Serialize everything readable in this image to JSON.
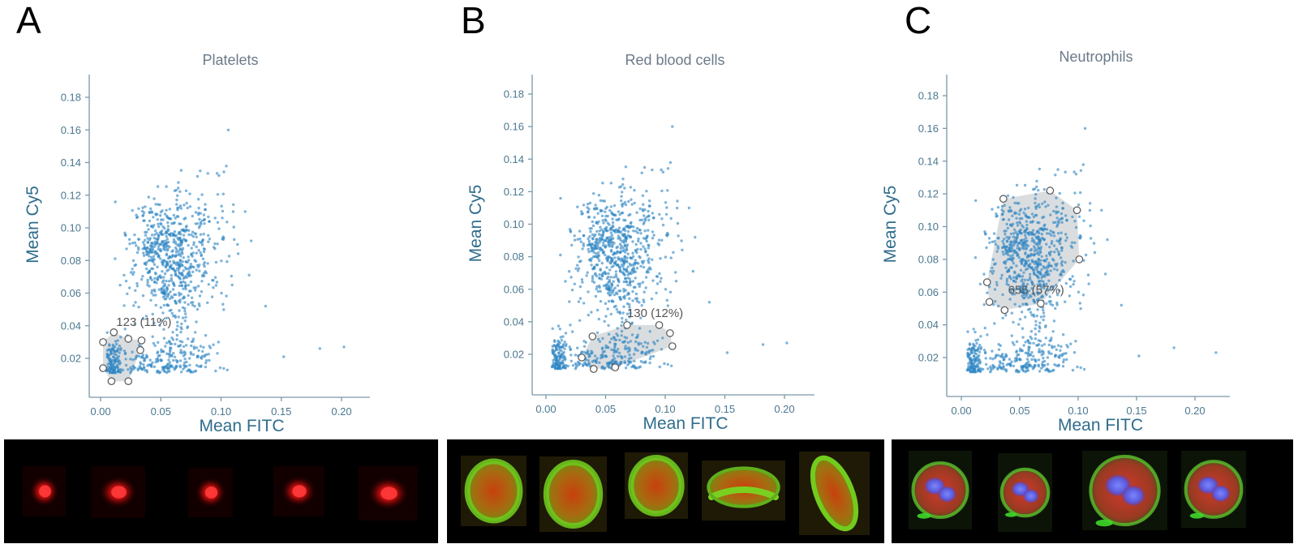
{
  "panels": [
    {
      "letter": "A",
      "title": "Platelets"
    },
    {
      "letter": "B",
      "title": "Red blood cells"
    },
    {
      "letter": "C",
      "title": "Neutrophils"
    }
  ],
  "chart_data": [
    {
      "type": "scatter",
      "title": "Platelets",
      "xlabel": "Mean FITC",
      "ylabel": "Mean Cy5",
      "xlim": [
        0.0,
        0.225
      ],
      "ylim": [
        0.0,
        0.19
      ],
      "xticks": [
        "0.00",
        "0.05",
        "0.10",
        "0.15",
        "0.20"
      ],
      "yticks": [
        "0.02",
        "0.04",
        "0.06",
        "0.08",
        "0.10",
        "0.12",
        "0.14",
        "0.16",
        "0.18"
      ],
      "grid": false,
      "series_color": "#2f86c4",
      "gate": {
        "label": "123 (11%)",
        "count": 123,
        "percent": 11,
        "vertices": [
          [
            0.002,
            0.03
          ],
          [
            0.011,
            0.036
          ],
          [
            0.023,
            0.032
          ],
          [
            0.034,
            0.031
          ],
          [
            0.033,
            0.025
          ],
          [
            0.023,
            0.006
          ],
          [
            0.009,
            0.006
          ],
          [
            0.002,
            0.014
          ]
        ]
      },
      "clusters": [
        {
          "cx": 0.058,
          "cy": 0.081,
          "sx": 0.016,
          "sy": 0.018,
          "n": 650
        },
        {
          "cx": 0.052,
          "cy": 0.02,
          "sx": 0.022,
          "sy": 0.007,
          "n": 230
        },
        {
          "cx": 0.011,
          "cy": 0.018,
          "sx": 0.004,
          "sy": 0.008,
          "n": 120
        },
        {
          "cx": 0.085,
          "cy": 0.096,
          "sx": 0.018,
          "sy": 0.022,
          "n": 80
        }
      ],
      "outliers": [
        [
          0.106,
          0.16
        ],
        [
          0.137,
          0.052
        ],
        [
          0.152,
          0.021
        ],
        [
          0.182,
          0.026
        ],
        [
          0.202,
          0.027
        ],
        [
          0.12,
          0.11
        ],
        [
          0.125,
          0.092
        ]
      ]
    },
    {
      "type": "scatter",
      "title": "Red blood cells",
      "xlabel": "Mean FITC",
      "ylabel": "Mean Cy5",
      "xlim": [
        0.0,
        0.225
      ],
      "ylim": [
        0.0,
        0.19
      ],
      "xticks": [
        "0.00",
        "0.05",
        "0.10",
        "0.15",
        "0.20"
      ],
      "yticks": [
        "0.02",
        "0.04",
        "0.06",
        "0.08",
        "0.10",
        "0.12",
        "0.14",
        "0.16",
        "0.18"
      ],
      "grid": false,
      "series_color": "#2f86c4",
      "gate": {
        "label": "130 (12%)",
        "count": 130,
        "percent": 12,
        "vertices": [
          [
            0.039,
            0.031
          ],
          [
            0.068,
            0.038
          ],
          [
            0.095,
            0.038
          ],
          [
            0.104,
            0.033
          ],
          [
            0.106,
            0.025
          ],
          [
            0.058,
            0.012
          ],
          [
            0.04,
            0.011
          ],
          [
            0.03,
            0.018
          ]
        ]
      },
      "clusters": [
        {
          "cx": 0.058,
          "cy": 0.081,
          "sx": 0.016,
          "sy": 0.018,
          "n": 650
        },
        {
          "cx": 0.052,
          "cy": 0.02,
          "sx": 0.022,
          "sy": 0.007,
          "n": 230
        },
        {
          "cx": 0.011,
          "cy": 0.018,
          "sx": 0.004,
          "sy": 0.008,
          "n": 120
        },
        {
          "cx": 0.085,
          "cy": 0.096,
          "sx": 0.018,
          "sy": 0.022,
          "n": 80
        }
      ],
      "outliers": [
        [
          0.106,
          0.16
        ],
        [
          0.137,
          0.052
        ],
        [
          0.152,
          0.021
        ],
        [
          0.182,
          0.026
        ],
        [
          0.202,
          0.027
        ],
        [
          0.12,
          0.11
        ],
        [
          0.125,
          0.092
        ]
      ]
    },
    {
      "type": "scatter",
      "title": "Neutrophils",
      "xlabel": "Mean FITC",
      "ylabel": "Mean Cy5",
      "xlim": [
        0.0,
        0.225
      ],
      "ylim": [
        0.0,
        0.19
      ],
      "xticks": [
        "0.00",
        "0.05",
        "0.10",
        "0.15",
        "0.20"
      ],
      "yticks": [
        "0.02",
        "0.04",
        "0.06",
        "0.08",
        "0.10",
        "0.12",
        "0.14",
        "0.16",
        "0.18"
      ],
      "grid": false,
      "series_color": "#2f86c4",
      "gate": {
        "label": "655 (57%)",
        "count": 655,
        "percent": 57,
        "vertices": [
          [
            0.036,
            0.117
          ],
          [
            0.076,
            0.122
          ],
          [
            0.099,
            0.11
          ],
          [
            0.101,
            0.08
          ],
          [
            0.068,
            0.053
          ],
          [
            0.037,
            0.049
          ],
          [
            0.024,
            0.054
          ],
          [
            0.022,
            0.066
          ]
        ]
      },
      "clusters": [
        {
          "cx": 0.058,
          "cy": 0.081,
          "sx": 0.016,
          "sy": 0.018,
          "n": 650
        },
        {
          "cx": 0.052,
          "cy": 0.02,
          "sx": 0.022,
          "sy": 0.007,
          "n": 230
        },
        {
          "cx": 0.011,
          "cy": 0.018,
          "sx": 0.004,
          "sy": 0.008,
          "n": 120
        },
        {
          "cx": 0.085,
          "cy": 0.096,
          "sx": 0.018,
          "sy": 0.022,
          "n": 80
        }
      ],
      "outliers": [
        [
          0.106,
          0.16
        ],
        [
          0.137,
          0.052
        ],
        [
          0.152,
          0.021
        ],
        [
          0.182,
          0.026
        ],
        [
          0.218,
          0.023
        ],
        [
          0.12,
          0.11
        ],
        [
          0.125,
          0.092
        ]
      ]
    }
  ],
  "micrographs": [
    {
      "panel": "A",
      "cells": [
        {
          "kind": "platelet"
        },
        {
          "kind": "platelet"
        },
        {
          "kind": "platelet"
        },
        {
          "kind": "platelet"
        },
        {
          "kind": "platelet"
        }
      ]
    },
    {
      "panel": "B",
      "cells": [
        {
          "kind": "rbc-round"
        },
        {
          "kind": "rbc-round"
        },
        {
          "kind": "rbc-round"
        },
        {
          "kind": "rbc-crescent"
        },
        {
          "kind": "rbc-elongated"
        }
      ]
    },
    {
      "panel": "C",
      "cells": [
        {
          "kind": "neutrophil"
        },
        {
          "kind": "neutrophil"
        },
        {
          "kind": "neutrophil"
        },
        {
          "kind": "neutrophil"
        }
      ]
    }
  ]
}
